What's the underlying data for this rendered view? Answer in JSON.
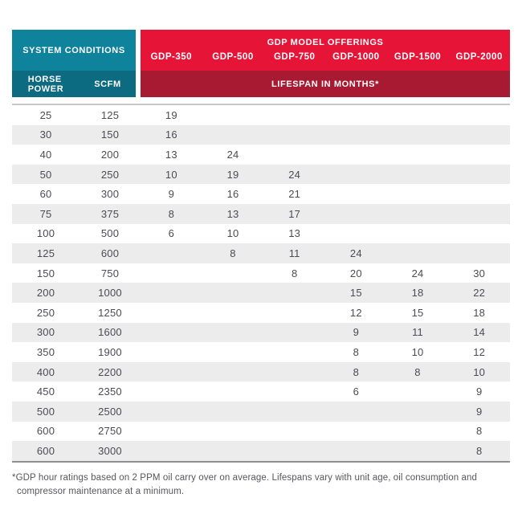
{
  "header": {
    "system_conditions": "SYSTEM CONDITIONS",
    "gdp_model_offerings": "GDP MODEL OFFERINGS",
    "horse_power": "HORSE\nPOWER",
    "scfm": "SCFM",
    "lifespan": "LIFESPAN IN MONTHS*",
    "models": [
      "GDP-350",
      "GDP-500",
      "GDP-750",
      "GDP-1000",
      "GDP-1500",
      "GDP-2000"
    ]
  },
  "table": {
    "col_headers": [
      "HORSE POWER",
      "SCFM",
      "GDP-350",
      "GDP-500",
      "GDP-750",
      "GDP-1000",
      "GDP-1500",
      "GDP-2000"
    ],
    "rows": [
      [
        "25",
        "125",
        "19",
        "",
        "",
        "",
        "",
        ""
      ],
      [
        "30",
        "150",
        "16",
        "",
        "",
        "",
        "",
        ""
      ],
      [
        "40",
        "200",
        "13",
        "24",
        "",
        "",
        "",
        ""
      ],
      [
        "50",
        "250",
        "10",
        "19",
        "24",
        "",
        "",
        ""
      ],
      [
        "60",
        "300",
        "9",
        "16",
        "21",
        "",
        "",
        ""
      ],
      [
        "75",
        "375",
        "8",
        "13",
        "17",
        "",
        "",
        ""
      ],
      [
        "100",
        "500",
        "6",
        "10",
        "13",
        "",
        "",
        ""
      ],
      [
        "125",
        "600",
        "",
        "8",
        "11",
        "24",
        "",
        ""
      ],
      [
        "150",
        "750",
        "",
        "",
        "8",
        "20",
        "24",
        "30"
      ],
      [
        "200",
        "1000",
        "",
        "",
        "",
        "15",
        "18",
        "22"
      ],
      [
        "250",
        "1250",
        "",
        "",
        "",
        "12",
        "15",
        "18"
      ],
      [
        "300",
        "1600",
        "",
        "",
        "",
        "9",
        "11",
        "14"
      ],
      [
        "350",
        "1900",
        "",
        "",
        "",
        "8",
        "10",
        "12"
      ],
      [
        "400",
        "2200",
        "",
        "",
        "",
        "8",
        "8",
        "10"
      ],
      [
        "450",
        "2350",
        "",
        "",
        "",
        "6",
        "",
        "9"
      ],
      [
        "500",
        "2500",
        "",
        "",
        "",
        "",
        "",
        "9"
      ],
      [
        "600",
        "2750",
        "",
        "",
        "",
        "",
        "",
        "8"
      ],
      [
        "600",
        "3000",
        "",
        "",
        "",
        "",
        "",
        "8"
      ]
    ]
  },
  "footnote": "*GDP hour ratings based on 2 PPM oil carry over on average. Lifespans vary with unit age, oil consumption and compressor maintenance at a minimum.",
  "colors": {
    "teal": "#0f829c",
    "teal_dark": "#0c6a81",
    "red": "#e61538",
    "red_dark": "#a81a32",
    "stripe": "#ececec",
    "text": "#4b4b54"
  }
}
